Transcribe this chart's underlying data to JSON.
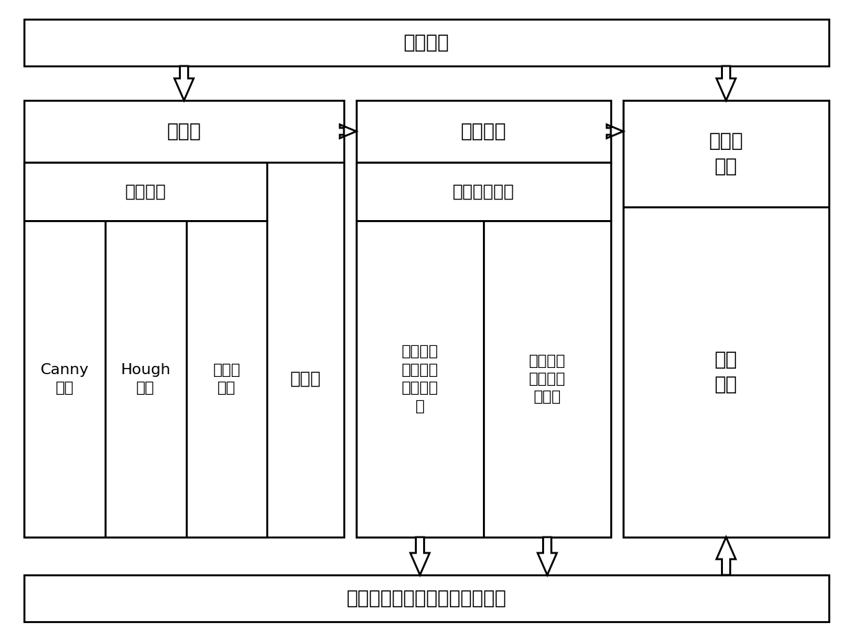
{
  "title": "虹膜原图",
  "bottom_box": "面向隐私需求保护后的虹膜图像",
  "preprocess_title": "预处理",
  "iris_locate": "虹膜定位",
  "normalize": "归一化",
  "canny": "Canny\n算子",
  "hough": "Hough\n变换",
  "integral": "微积分\n算子",
  "hide_title": "隐藏保护",
  "diff_privacy": "差分隐私算法",
  "laplace": "基于拉普\n拉斯噪声\n的差分隐\n私",
  "gaussian": "基于高斯\n噪声的差\n分隐私",
  "similarity_title": "相似性\n验证",
  "hash": "哈希\n算法",
  "bg_color": "#ffffff",
  "box_color": "#000000",
  "text_color": "#000000"
}
